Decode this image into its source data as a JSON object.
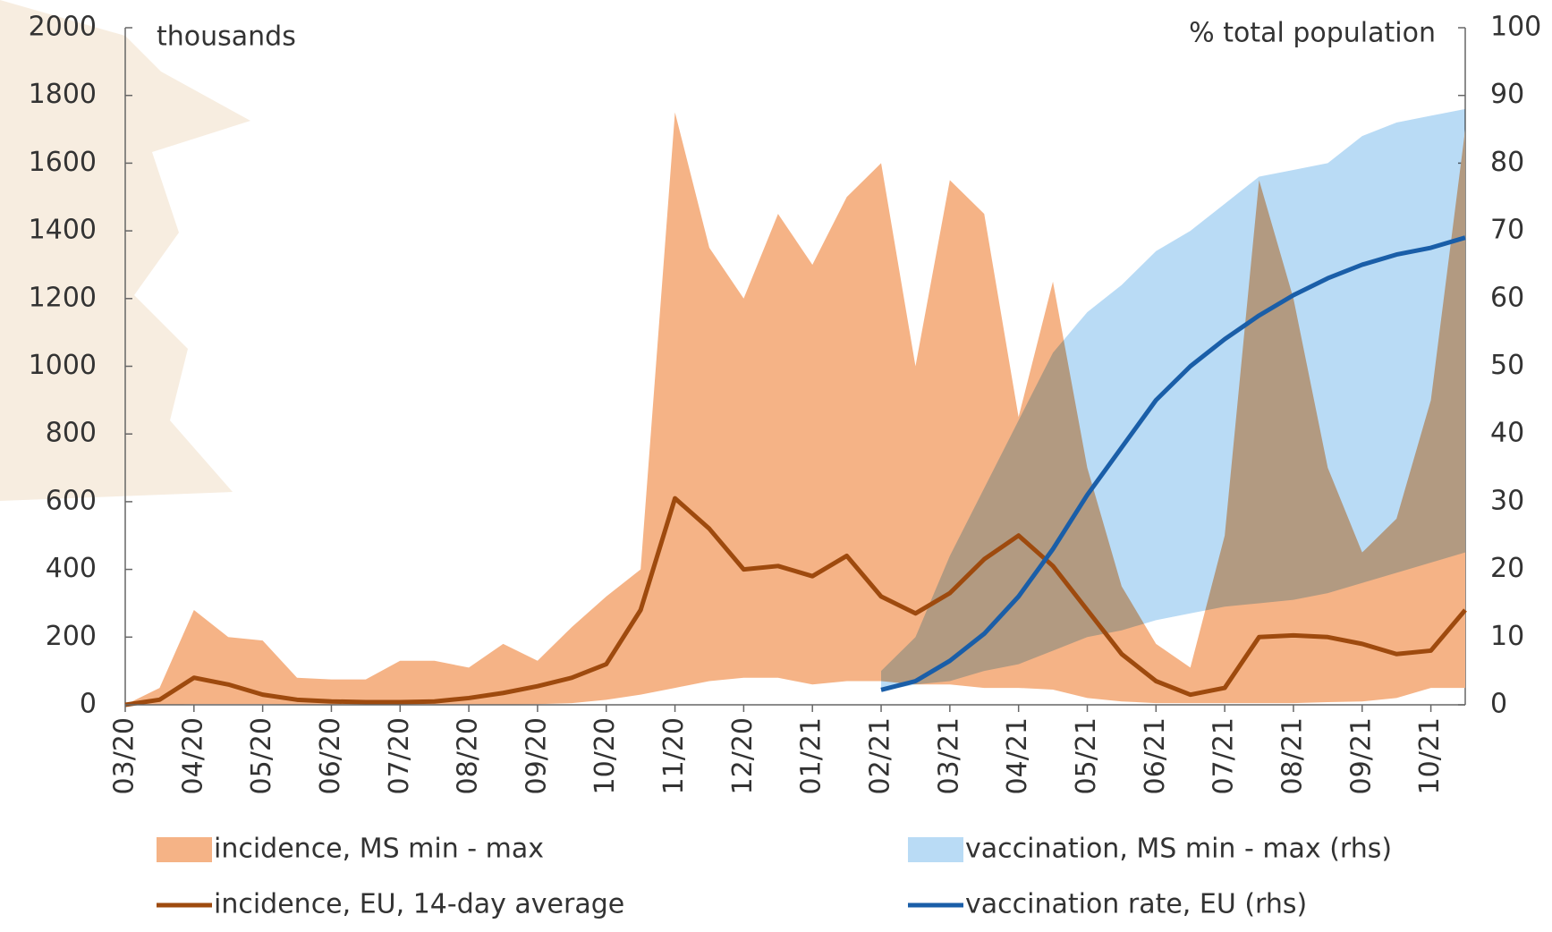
{
  "chart_data": {
    "type": "line",
    "y_label": "thousands",
    "y2_label": "% total population",
    "categories": [
      "03/20",
      null,
      "04/20",
      null,
      "05/20",
      null,
      "06/20",
      null,
      "07/20",
      null,
      "08/20",
      null,
      "09/20",
      null,
      "10/20",
      null,
      "11/20",
      null,
      "12/20",
      null,
      "01/21",
      null,
      "02/21",
      null,
      "03/21",
      null,
      "04/21",
      null,
      "05/21",
      null,
      "06/21",
      null,
      "07/21",
      null,
      "08/21",
      null,
      "09/21",
      null,
      "10/21",
      null
    ],
    "ylim": [
      0,
      2000
    ],
    "yticks": [
      0,
      200,
      400,
      600,
      800,
      1000,
      1200,
      1400,
      1600,
      1800,
      2000
    ],
    "y2lim": [
      0,
      100
    ],
    "y2ticks": [
      0,
      10,
      20,
      30,
      40,
      50,
      60,
      70,
      80,
      90,
      100
    ],
    "series": [
      {
        "name": "incidence, MS min - max",
        "type": "range",
        "color": "#f5b386",
        "min": [
          0,
          0,
          2,
          2,
          2,
          1,
          1,
          1,
          1,
          1,
          1,
          1,
          2,
          5,
          15,
          30,
          50,
          70,
          80,
          80,
          60,
          70,
          70,
          60,
          60,
          50,
          50,
          45,
          20,
          10,
          5,
          5,
          5,
          5,
          5,
          8,
          10,
          20,
          50,
          50
        ],
        "max": [
          0,
          50,
          280,
          200,
          190,
          80,
          75,
          75,
          130,
          130,
          110,
          180,
          130,
          230,
          320,
          400,
          1750,
          1350,
          1200,
          1450,
          1300,
          1500,
          1600,
          1000,
          1550,
          1450,
          850,
          1250,
          700,
          350,
          180,
          110,
          500,
          1550,
          1200,
          700,
          450,
          550,
          900,
          1700
        ]
      },
      {
        "name": "incidence, EU, 14-day average",
        "type": "line",
        "color": "#9e4a0e",
        "values": [
          0,
          15,
          80,
          60,
          30,
          15,
          10,
          8,
          8,
          10,
          20,
          35,
          55,
          80,
          120,
          280,
          610,
          520,
          400,
          410,
          380,
          440,
          320,
          270,
          330,
          430,
          500,
          410,
          280,
          150,
          70,
          30,
          50,
          200,
          205,
          200,
          180,
          150,
          160,
          280
        ]
      },
      {
        "name": "vaccination, MS min - max (rhs)",
        "type": "range",
        "axis": "y2",
        "color": "#b9dbf5",
        "min": [
          null,
          null,
          null,
          null,
          null,
          null,
          null,
          null,
          null,
          null,
          null,
          null,
          null,
          null,
          null,
          null,
          null,
          null,
          null,
          null,
          null,
          null,
          2,
          3,
          3.5,
          5,
          6,
          8,
          10,
          11,
          12.5,
          13.5,
          14.5,
          15,
          15.5,
          16.5,
          18,
          19.5,
          21,
          22.5
        ],
        "max": [
          null,
          null,
          null,
          null,
          null,
          null,
          null,
          null,
          null,
          null,
          null,
          null,
          null,
          null,
          null,
          null,
          null,
          null,
          null,
          null,
          null,
          null,
          5,
          10,
          22,
          32,
          42,
          52,
          58,
          62,
          67,
          70,
          74,
          78,
          79,
          80,
          84,
          86,
          87,
          88
        ]
      },
      {
        "name": "vaccination rate, EU (rhs)",
        "type": "line",
        "axis": "y2",
        "color": "#1a5ea8",
        "values": [
          null,
          null,
          null,
          null,
          null,
          null,
          null,
          null,
          null,
          null,
          null,
          null,
          null,
          null,
          null,
          null,
          null,
          null,
          null,
          null,
          null,
          null,
          2.2,
          3.5,
          6.5,
          10.5,
          16,
          23,
          31,
          38,
          45,
          50,
          54,
          57.5,
          60.5,
          63,
          65,
          66.5,
          67.5,
          69
        ]
      }
    ]
  }
}
